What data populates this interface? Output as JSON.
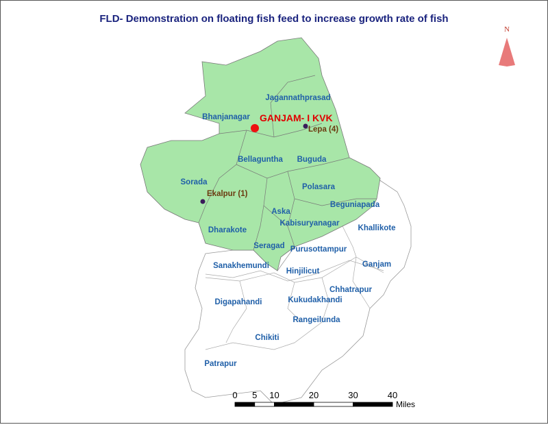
{
  "title": "FLD- Demonstration on floating fish feed to increase growth rate of fish",
  "north_label": "N",
  "highlighted_blocks": [
    "Jagannathprasad",
    "Bhanjanagar",
    "Bellaguntha",
    "Buguda",
    "Sorada",
    "Polasara",
    "Beguniapada",
    "Aska",
    "Kabisuryanagar",
    "Dharakote",
    "Seragad"
  ],
  "other_blocks": [
    "Khallikote",
    "Purusottampur",
    "Sanakhemundi",
    "Ganjam",
    "Hinjilicut",
    "Chhatrapur",
    "Digapahandi",
    "Kukudakhandi",
    "Rangeilunda",
    "Chikiti",
    "Patrapur"
  ],
  "kvk": {
    "label": "GANJAM- I KVK"
  },
  "sites": [
    {
      "label": "Lepa (4)"
    },
    {
      "label": "Ekalpur (1)"
    }
  ],
  "scale_bar": {
    "ticks": [
      0,
      5,
      10,
      20,
      30,
      40
    ],
    "unit": "Miles"
  }
}
